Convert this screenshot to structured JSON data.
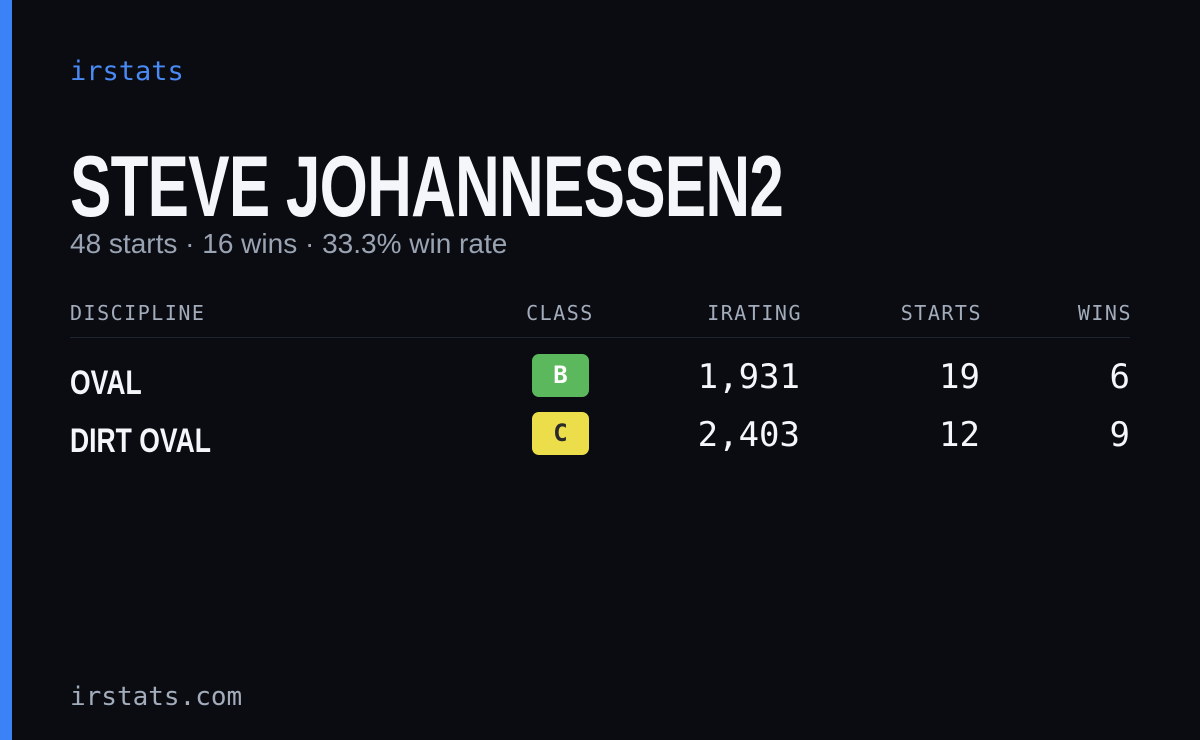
{
  "brand": "irstats",
  "header": {
    "title": "STEVE JOHANNESSEN2",
    "subtitle": "48 starts · 16 wins · 33.3% win rate"
  },
  "table": {
    "columns": [
      "DISCIPLINE",
      "CLASS",
      "IRATING",
      "STARTS",
      "WINS"
    ],
    "rows": [
      [
        "OVAL",
        "B",
        "1,931",
        19,
        6
      ],
      [
        "DIRT OVAL",
        "C",
        "2,403",
        12,
        9
      ]
    ]
  },
  "footer": "irstats.com"
}
